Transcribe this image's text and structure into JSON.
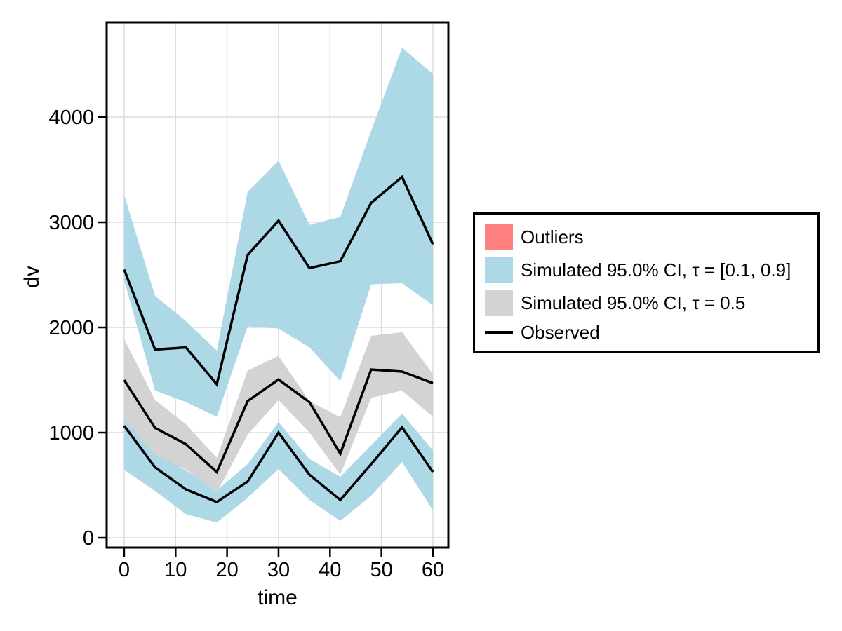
{
  "colors": {
    "outliers": "#ff8080",
    "ci_outer": "#add8e6",
    "ci_median": "#d3d3d3",
    "observed": "#000000",
    "grid": "#dcdcdc",
    "axis": "#000000",
    "background": "#ffffff"
  },
  "axes": {
    "xlabel": "time",
    "ylabel": "dv"
  },
  "legend": {
    "items": [
      {
        "label": "Outliers",
        "glyph": "swatch",
        "color": "outliers"
      },
      {
        "label": "Simulated 95.0% CI, τ = [0.1, 0.9]",
        "glyph": "swatch",
        "color": "ci_outer"
      },
      {
        "label": "Simulated 95.0% CI, τ = 0.5",
        "glyph": "swatch",
        "color": "ci_median"
      },
      {
        "label": "Observed",
        "glyph": "line",
        "color": "observed"
      }
    ]
  },
  "chart_data": {
    "type": "line",
    "subtype": "vpc-percentile-ribbons",
    "title": "",
    "xlabel": "time",
    "ylabel": "dv",
    "grid": true,
    "legend_position": "right",
    "x": [
      0,
      6,
      12,
      18,
      24,
      30,
      36,
      42,
      48,
      54,
      60
    ],
    "xticks": [
      0,
      10,
      20,
      30,
      40,
      50,
      60
    ],
    "yticks": [
      0,
      1000,
      2000,
      3000,
      4000
    ],
    "xlim": [
      -3.4,
      63.0
    ],
    "ylim": [
      -93,
      4900
    ],
    "ribbons": [
      {
        "id": "sim_ci_outer_upper_band",
        "legend_label": "Simulated 95.0% CI, τ = [0.1, 0.9]",
        "color": "ci_outer",
        "hi": [
          3260,
          2300,
          2060,
          1780,
          3290,
          3585,
          2975,
          3050,
          3870,
          4660,
          4410
        ],
        "lo": [
          2450,
          1400,
          1290,
          1150,
          2010,
          1990,
          1810,
          1490,
          2410,
          2420,
          2210
        ]
      },
      {
        "id": "sim_ci_outer_lower_band",
        "legend_label": "Simulated 95.0% CI, τ = [0.1, 0.9]",
        "color": "ci_outer",
        "hi": [
          1170,
          820,
          640,
          450,
          700,
          1100,
          750,
          580,
          880,
          1180,
          830
        ],
        "lo": [
          645,
          445,
          225,
          145,
          380,
          655,
          360,
          160,
          400,
          720,
          260
        ]
      },
      {
        "id": "sim_ci_median_band",
        "legend_label": "Simulated 95.0% CI, τ = 0.5",
        "color": "ci_median",
        "hi": [
          1890,
          1310,
          1080,
          760,
          1590,
          1730,
          1300,
          1145,
          1920,
          1955,
          1555
        ],
        "lo": [
          1120,
          790,
          650,
          430,
          980,
          1310,
          1000,
          600,
          1330,
          1400,
          1150
        ]
      }
    ],
    "lines": [
      {
        "id": "observed_upper",
        "legend_label": "Observed",
        "color": "observed",
        "y": [
          2550,
          1790,
          1810,
          1460,
          2690,
          3015,
          2565,
          2630,
          3185,
          3430,
          2790
        ]
      },
      {
        "id": "observed_median",
        "legend_label": "Observed",
        "color": "observed",
        "y": [
          1500,
          1045,
          890,
          625,
          1300,
          1505,
          1290,
          800,
          1600,
          1580,
          1470
        ]
      },
      {
        "id": "observed_lower",
        "legend_label": "Observed",
        "color": "observed",
        "y": [
          1065,
          670,
          460,
          340,
          535,
          1000,
          600,
          360,
          700,
          1050,
          625
        ]
      }
    ],
    "outlier_points": []
  }
}
